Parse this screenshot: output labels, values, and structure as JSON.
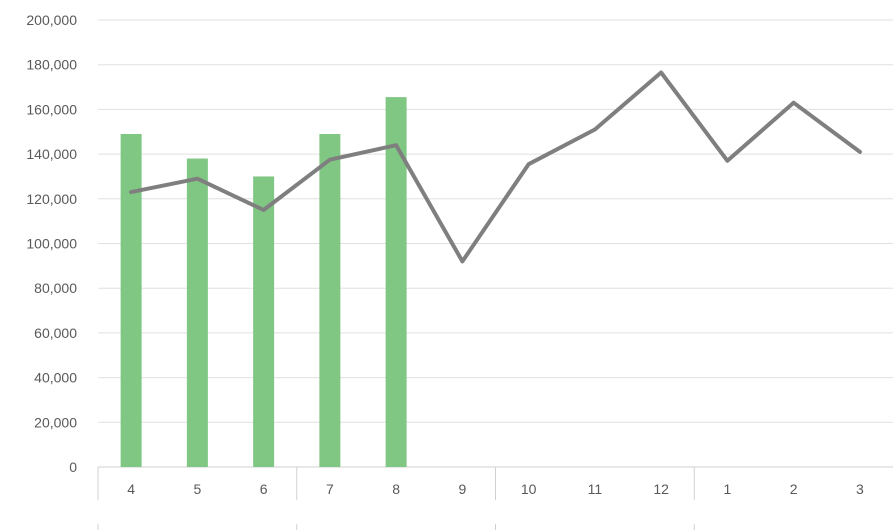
{
  "chart_data": {
    "type": "bar",
    "categories": [
      "4",
      "5",
      "6",
      "7",
      "8",
      "9",
      "10",
      "11",
      "12",
      "1",
      "2",
      "3"
    ],
    "series": [
      {
        "type": "bar",
        "values": [
          149000,
          138000,
          130000,
          149000,
          165500,
          null,
          null,
          null,
          null,
          null,
          null,
          null
        ],
        "color": "#81c784"
      },
      {
        "type": "line",
        "values": [
          123000,
          129000,
          115000,
          137500,
          144000,
          92000,
          135500,
          151000,
          176500,
          137000,
          163000,
          141000
        ],
        "color": "#7f7f7f"
      }
    ],
    "y_ticks": [
      "0",
      "20,000",
      "40,000",
      "60,000",
      "80,000",
      "100,000",
      "120,000",
      "140,000",
      "160,000",
      "180,000",
      "200,000"
    ],
    "ylim": [
      0,
      200000
    ],
    "grid": true,
    "group_separators_after": [
      3,
      6,
      9
    ]
  }
}
